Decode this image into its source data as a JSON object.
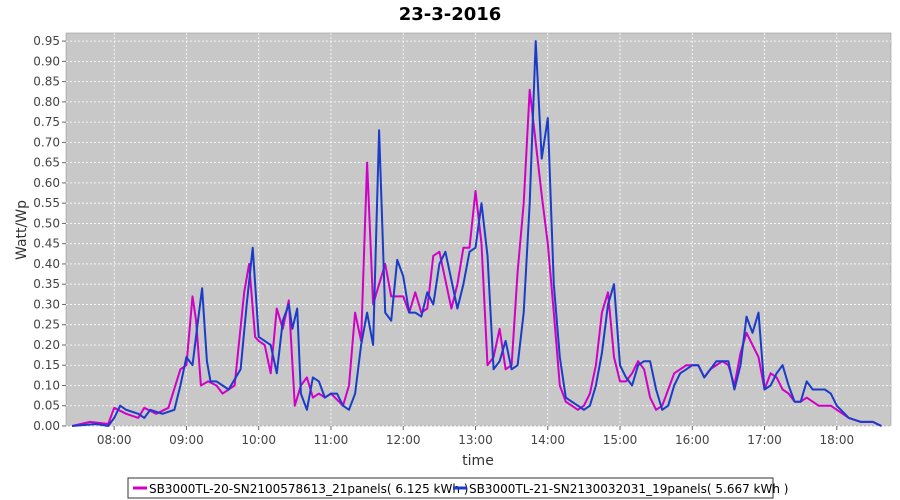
{
  "chart_data": {
    "type": "line",
    "title": "23-3-2016",
    "xlabel": "time",
    "ylabel": "Watt/Wp",
    "xlim": [
      "07:20",
      "18:45"
    ],
    "ylim": [
      0,
      0.97
    ],
    "xticks": [
      "08:00",
      "09:00",
      "10:00",
      "11:00",
      "12:00",
      "13:00",
      "14:00",
      "15:00",
      "16:00",
      "17:00",
      "18:00"
    ],
    "yticks": [
      "0.00",
      "0.05",
      "0.10",
      "0.15",
      "0.20",
      "0.25",
      "0.30",
      "0.35",
      "0.40",
      "0.45",
      "0.50",
      "0.55",
      "0.60",
      "0.65",
      "0.70",
      "0.75",
      "0.80",
      "0.85",
      "0.90",
      "0.95"
    ],
    "grid": true,
    "background": "#c8c8c8",
    "legend_position": "bottom",
    "series": [
      {
        "name": "SB3000TL-20-SN2100578613_21panels( 6.125 kWh )",
        "color": "#d000c8",
        "points": [
          [
            "07:25",
            0.0
          ],
          [
            "07:40",
            0.01
          ],
          [
            "07:55",
            0.005
          ],
          [
            "08:00",
            0.045
          ],
          [
            "08:10",
            0.03
          ],
          [
            "08:20",
            0.02
          ],
          [
            "08:25",
            0.045
          ],
          [
            "08:35",
            0.03
          ],
          [
            "08:45",
            0.045
          ],
          [
            "08:55",
            0.14
          ],
          [
            "09:00",
            0.15
          ],
          [
            "09:05",
            0.32
          ],
          [
            "09:08",
            0.26
          ],
          [
            "09:12",
            0.1
          ],
          [
            "09:18",
            0.11
          ],
          [
            "09:25",
            0.1
          ],
          [
            "09:30",
            0.08
          ],
          [
            "09:40",
            0.1
          ],
          [
            "09:48",
            0.33
          ],
          [
            "09:52",
            0.4
          ],
          [
            "09:57",
            0.22
          ],
          [
            "10:00",
            0.21
          ],
          [
            "10:05",
            0.2
          ],
          [
            "10:10",
            0.13
          ],
          [
            "10:15",
            0.29
          ],
          [
            "10:20",
            0.24
          ],
          [
            "10:25",
            0.31
          ],
          [
            "10:30",
            0.05
          ],
          [
            "10:35",
            0.1
          ],
          [
            "10:40",
            0.12
          ],
          [
            "10:45",
            0.07
          ],
          [
            "10:50",
            0.08
          ],
          [
            "10:55",
            0.07
          ],
          [
            "11:00",
            0.08
          ],
          [
            "11:10",
            0.05
          ],
          [
            "11:15",
            0.1
          ],
          [
            "11:20",
            0.28
          ],
          [
            "11:25",
            0.21
          ],
          [
            "11:30",
            0.65
          ],
          [
            "11:35",
            0.3
          ],
          [
            "11:40",
            0.35
          ],
          [
            "11:45",
            0.4
          ],
          [
            "11:50",
            0.32
          ],
          [
            "12:00",
            0.32
          ],
          [
            "12:05",
            0.28
          ],
          [
            "12:10",
            0.33
          ],
          [
            "12:15",
            0.28
          ],
          [
            "12:20",
            0.29
          ],
          [
            "12:25",
            0.42
          ],
          [
            "12:30",
            0.43
          ],
          [
            "12:35",
            0.36
          ],
          [
            "12:40",
            0.29
          ],
          [
            "12:45",
            0.35
          ],
          [
            "12:50",
            0.44
          ],
          [
            "12:55",
            0.44
          ],
          [
            "13:00",
            0.58
          ],
          [
            "13:05",
            0.45
          ],
          [
            "13:10",
            0.15
          ],
          [
            "13:15",
            0.17
          ],
          [
            "13:20",
            0.24
          ],
          [
            "13:25",
            0.14
          ],
          [
            "13:30",
            0.15
          ],
          [
            "13:35",
            0.38
          ],
          [
            "13:40",
            0.55
          ],
          [
            "13:45",
            0.83
          ],
          [
            "13:50",
            0.7
          ],
          [
            "13:55",
            0.57
          ],
          [
            "14:00",
            0.45
          ],
          [
            "14:05",
            0.28
          ],
          [
            "14:10",
            0.1
          ],
          [
            "14:15",
            0.06
          ],
          [
            "14:20",
            0.05
          ],
          [
            "14:25",
            0.04
          ],
          [
            "14:30",
            0.05
          ],
          [
            "14:35",
            0.08
          ],
          [
            "14:40",
            0.15
          ],
          [
            "14:45",
            0.28
          ],
          [
            "14:50",
            0.33
          ],
          [
            "14:55",
            0.17
          ],
          [
            "15:00",
            0.11
          ],
          [
            "15:05",
            0.11
          ],
          [
            "15:10",
            0.13
          ],
          [
            "15:15",
            0.16
          ],
          [
            "15:20",
            0.14
          ],
          [
            "15:25",
            0.07
          ],
          [
            "15:30",
            0.04
          ],
          [
            "15:35",
            0.05
          ],
          [
            "15:40",
            0.09
          ],
          [
            "15:45",
            0.13
          ],
          [
            "15:50",
            0.14
          ],
          [
            "15:55",
            0.15
          ],
          [
            "16:00",
            0.15
          ],
          [
            "16:05",
            0.15
          ],
          [
            "16:10",
            0.12
          ],
          [
            "16:15",
            0.14
          ],
          [
            "16:20",
            0.15
          ],
          [
            "16:25",
            0.16
          ],
          [
            "16:30",
            0.15
          ],
          [
            "16:35",
            0.1
          ],
          [
            "16:40",
            0.18
          ],
          [
            "16:45",
            0.23
          ],
          [
            "16:50",
            0.2
          ],
          [
            "16:55",
            0.17
          ],
          [
            "17:00",
            0.09
          ],
          [
            "17:05",
            0.13
          ],
          [
            "17:10",
            0.12
          ],
          [
            "17:15",
            0.09
          ],
          [
            "17:20",
            0.08
          ],
          [
            "17:25",
            0.06
          ],
          [
            "17:30",
            0.06
          ],
          [
            "17:35",
            0.07
          ],
          [
            "17:40",
            0.06
          ],
          [
            "17:45",
            0.05
          ],
          [
            "17:50",
            0.05
          ],
          [
            "17:55",
            0.05
          ],
          [
            "18:00",
            0.04
          ],
          [
            "18:10",
            0.02
          ],
          [
            "18:20",
            0.01
          ],
          [
            "18:30",
            0.01
          ],
          [
            "18:37",
            0.0
          ]
        ]
      },
      {
        "name": "SB3000TL-21-SN2130032031_19panels( 5.667 kWh )",
        "color": "#1a3cc8",
        "points": [
          [
            "07:25",
            0.0
          ],
          [
            "07:45",
            0.005
          ],
          [
            "07:55",
            0.0
          ],
          [
            "08:00",
            0.02
          ],
          [
            "08:05",
            0.05
          ],
          [
            "08:10",
            0.04
          ],
          [
            "08:20",
            0.03
          ],
          [
            "08:25",
            0.02
          ],
          [
            "08:30",
            0.04
          ],
          [
            "08:40",
            0.03
          ],
          [
            "08:50",
            0.04
          ],
          [
            "08:55",
            0.1
          ],
          [
            "09:00",
            0.17
          ],
          [
            "09:05",
            0.15
          ],
          [
            "09:10",
            0.27
          ],
          [
            "09:13",
            0.34
          ],
          [
            "09:17",
            0.16
          ],
          [
            "09:20",
            0.11
          ],
          [
            "09:25",
            0.11
          ],
          [
            "09:30",
            0.1
          ],
          [
            "09:35",
            0.09
          ],
          [
            "09:45",
            0.14
          ],
          [
            "09:50",
            0.3
          ],
          [
            "09:55",
            0.44
          ],
          [
            "10:00",
            0.22
          ],
          [
            "10:05",
            0.21
          ],
          [
            "10:10",
            0.2
          ],
          [
            "10:15",
            0.13
          ],
          [
            "10:20",
            0.26
          ],
          [
            "10:25",
            0.3
          ],
          [
            "10:28",
            0.24
          ],
          [
            "10:32",
            0.29
          ],
          [
            "10:35",
            0.08
          ],
          [
            "10:40",
            0.04
          ],
          [
            "10:45",
            0.12
          ],
          [
            "10:50",
            0.11
          ],
          [
            "10:55",
            0.07
          ],
          [
            "11:00",
            0.08
          ],
          [
            "11:05",
            0.08
          ],
          [
            "11:10",
            0.05
          ],
          [
            "11:15",
            0.04
          ],
          [
            "11:20",
            0.08
          ],
          [
            "11:25",
            0.2
          ],
          [
            "11:30",
            0.28
          ],
          [
            "11:35",
            0.2
          ],
          [
            "11:40",
            0.73
          ],
          [
            "11:45",
            0.28
          ],
          [
            "11:50",
            0.26
          ],
          [
            "11:55",
            0.41
          ],
          [
            "12:00",
            0.37
          ],
          [
            "12:05",
            0.28
          ],
          [
            "12:10",
            0.28
          ],
          [
            "12:15",
            0.27
          ],
          [
            "12:20",
            0.33
          ],
          [
            "12:25",
            0.3
          ],
          [
            "12:30",
            0.4
          ],
          [
            "12:35",
            0.43
          ],
          [
            "12:40",
            0.36
          ],
          [
            "12:45",
            0.29
          ],
          [
            "12:50",
            0.35
          ],
          [
            "12:55",
            0.43
          ],
          [
            "13:00",
            0.44
          ],
          [
            "13:05",
            0.55
          ],
          [
            "13:10",
            0.42
          ],
          [
            "13:15",
            0.14
          ],
          [
            "13:20",
            0.16
          ],
          [
            "13:25",
            0.21
          ],
          [
            "13:30",
            0.14
          ],
          [
            "13:35",
            0.15
          ],
          [
            "13:40",
            0.28
          ],
          [
            "13:45",
            0.55
          ],
          [
            "13:50",
            0.95
          ],
          [
            "13:55",
            0.66
          ],
          [
            "14:00",
            0.76
          ],
          [
            "14:05",
            0.35
          ],
          [
            "14:10",
            0.17
          ],
          [
            "14:15",
            0.07
          ],
          [
            "14:20",
            0.06
          ],
          [
            "14:25",
            0.05
          ],
          [
            "14:30",
            0.04
          ],
          [
            "14:35",
            0.05
          ],
          [
            "14:40",
            0.1
          ],
          [
            "14:45",
            0.18
          ],
          [
            "14:50",
            0.3
          ],
          [
            "14:55",
            0.35
          ],
          [
            "15:00",
            0.15
          ],
          [
            "15:05",
            0.12
          ],
          [
            "15:10",
            0.1
          ],
          [
            "15:15",
            0.15
          ],
          [
            "15:20",
            0.16
          ],
          [
            "15:25",
            0.16
          ],
          [
            "15:30",
            0.09
          ],
          [
            "15:35",
            0.04
          ],
          [
            "15:40",
            0.05
          ],
          [
            "15:45",
            0.1
          ],
          [
            "15:50",
            0.13
          ],
          [
            "15:55",
            0.14
          ],
          [
            "16:00",
            0.15
          ],
          [
            "16:05",
            0.15
          ],
          [
            "16:10",
            0.12
          ],
          [
            "16:15",
            0.14
          ],
          [
            "16:20",
            0.16
          ],
          [
            "16:25",
            0.16
          ],
          [
            "16:30",
            0.16
          ],
          [
            "16:35",
            0.09
          ],
          [
            "16:40",
            0.15
          ],
          [
            "16:45",
            0.27
          ],
          [
            "16:50",
            0.23
          ],
          [
            "16:55",
            0.28
          ],
          [
            "17:00",
            0.09
          ],
          [
            "17:05",
            0.1
          ],
          [
            "17:10",
            0.13
          ],
          [
            "17:15",
            0.15
          ],
          [
            "17:20",
            0.1
          ],
          [
            "17:25",
            0.06
          ],
          [
            "17:30",
            0.06
          ],
          [
            "17:35",
            0.11
          ],
          [
            "17:40",
            0.09
          ],
          [
            "17:45",
            0.09
          ],
          [
            "17:50",
            0.09
          ],
          [
            "17:55",
            0.08
          ],
          [
            "18:00",
            0.05
          ],
          [
            "18:10",
            0.02
          ],
          [
            "18:20",
            0.01
          ],
          [
            "18:30",
            0.01
          ],
          [
            "18:37",
            0.0
          ]
        ]
      }
    ]
  }
}
